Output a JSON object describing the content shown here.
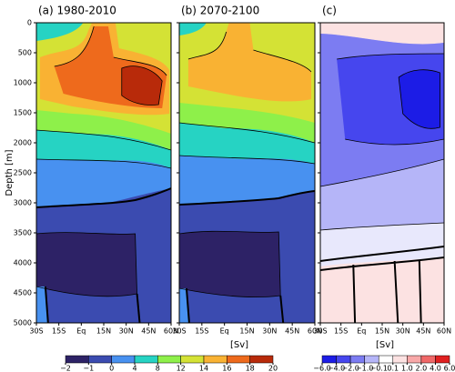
{
  "chart_data": [
    {
      "type": "contour",
      "title": "(a) 1980-2010",
      "ylabel": "Depth [m]",
      "xlim": [
        -30,
        60
      ],
      "xticks": [
        {
          "value": -30,
          "label": "30S"
        },
        {
          "value": -15,
          "label": "15S"
        },
        {
          "value": 0,
          "label": "Eq"
        },
        {
          "value": 15,
          "label": "15N"
        },
        {
          "value": 30,
          "label": "30N"
        },
        {
          "value": 45,
          "label": "45N"
        },
        {
          "value": 60,
          "label": "60N"
        }
      ],
      "ylim": [
        0,
        5000
      ],
      "y_inverted": true,
      "yticks": [
        0,
        500,
        1000,
        1500,
        2000,
        2500,
        3000,
        3500,
        4000,
        4500,
        5000
      ]
    },
    {
      "type": "contour",
      "title": "(b) 2070-2100",
      "xlim": [
        -30,
        60
      ],
      "xticks": [
        {
          "value": -30,
          "label": "30S"
        },
        {
          "value": -15,
          "label": "15S"
        },
        {
          "value": 0,
          "label": "Eq"
        },
        {
          "value": 15,
          "label": "15N"
        },
        {
          "value": 30,
          "label": "30N"
        },
        {
          "value": 45,
          "label": "45N"
        },
        {
          "value": 60,
          "label": "60N"
        }
      ]
    },
    {
      "type": "contour",
      "title": "(c)",
      "xlim": [
        -30,
        60
      ],
      "xticks": [
        {
          "value": -30,
          "label": "30S"
        },
        {
          "value": -15,
          "label": "15S"
        },
        {
          "value": 0,
          "label": "Eq"
        },
        {
          "value": 15,
          "label": "15N"
        },
        {
          "value": 30,
          "label": "30N"
        },
        {
          "value": 45,
          "label": "45N"
        },
        {
          "value": 60,
          "label": "60N"
        }
      ]
    }
  ],
  "colorbars": [
    {
      "label": "[Sv]",
      "ticks": [
        {
          "value": -2,
          "label": "−2"
        },
        {
          "value": -1,
          "label": "−1"
        },
        0,
        4,
        8,
        12,
        14,
        16,
        18,
        20
      ],
      "colors": [
        "#2d2266",
        "#3b4bb0",
        "#4891f0",
        "#26d3c3",
        "#8ef04a",
        "#d4e235",
        "#f9b233",
        "#ee6a1c",
        "#b82a0a"
      ]
    },
    {
      "label": "[Sv]",
      "ticks": [
        {
          "value": -6,
          "label": "−6.0"
        },
        {
          "value": -4,
          "label": "−4.0"
        },
        {
          "value": -2,
          "label": "−2.0"
        },
        {
          "value": -1,
          "label": "−1.0"
        },
        {
          "value": -0.1,
          "label": "−0.1"
        },
        {
          "value": 0.1,
          "label": "0.1"
        },
        {
          "value": 1,
          "label": "1.0"
        },
        {
          "value": 2,
          "label": "2.0"
        },
        {
          "value": 4,
          "label": "4.0"
        },
        {
          "value": 6,
          "label": "6.0"
        }
      ],
      "colors": [
        "#1c1ce6",
        "#4646ee",
        "#7c7cf2",
        "#b5b5f8",
        "#ffffff",
        "#fce2e2",
        "#f8a8a8",
        "#f06868",
        "#e02020"
      ]
    }
  ]
}
